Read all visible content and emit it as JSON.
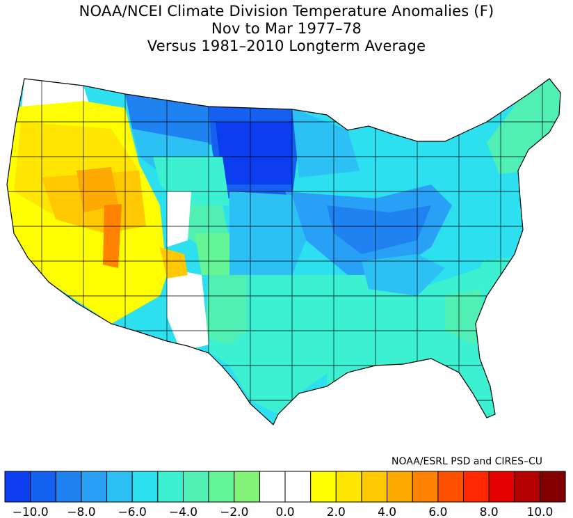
{
  "title": {
    "line1": "NOAA/NCEI Climate Division Temperature Anomalies (F)",
    "line2": "Nov to Mar 1977–78",
    "line3": "Versus 1981–2010 Longterm Average"
  },
  "credit": "NOAA/ESRL PSD and CIRES–CU",
  "colors": {
    "m10": "#0a3cf0",
    "m9": "#1460f0",
    "m8": "#1e82f0",
    "m7": "#28a0f5",
    "m6": "#2dc0f5",
    "m5": "#2de0f0",
    "m4": "#3cf0d2",
    "m3": "#50f0b4",
    "m2": "#64f596",
    "m1": "#82f578",
    "zero": "#ffffff",
    "p1": "#ffff00",
    "p2": "#ffe600",
    "p3": "#ffc800",
    "p4": "#ffaa00",
    "p5": "#ff8200",
    "p6": "#ff5000",
    "p7": "#ff2800",
    "p8": "#e60000",
    "p9": "#b40000",
    "p10": "#820000"
  },
  "chart_data": {
    "type": "heatmap",
    "colorbar": {
      "colors": [
        "#0a3cf0",
        "#1460f0",
        "#1e82f0",
        "#28a0f5",
        "#2dc0f5",
        "#2de0f0",
        "#3cf0d2",
        "#50f0b4",
        "#64f596",
        "#82f578",
        "#ffffff",
        "#ffffff",
        "#ffff00",
        "#ffe600",
        "#ffc800",
        "#ffaa00",
        "#ff8200",
        "#ff5000",
        "#ff2800",
        "#e60000",
        "#b40000",
        "#820000"
      ],
      "ticks": [
        "−10.0",
        "−8.0",
        "−6.0",
        "−4.0",
        "−2.0",
        "0.0",
        "2.0",
        "4.0",
        "6.0",
        "8.0",
        "10.0"
      ],
      "range": [
        -11,
        11
      ]
    }
  }
}
